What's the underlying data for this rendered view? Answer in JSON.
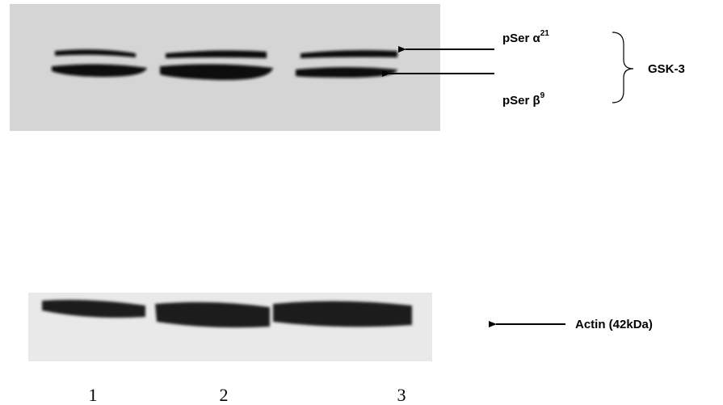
{
  "labels": {
    "alpha": {
      "text": "pSer α",
      "sup": "21"
    },
    "beta": {
      "text": "pSer β",
      "sup": "9"
    },
    "group": "GSK-3",
    "actin": "Actin (42kDa)"
  },
  "lanes": [
    "1",
    "2",
    "3"
  ]
}
